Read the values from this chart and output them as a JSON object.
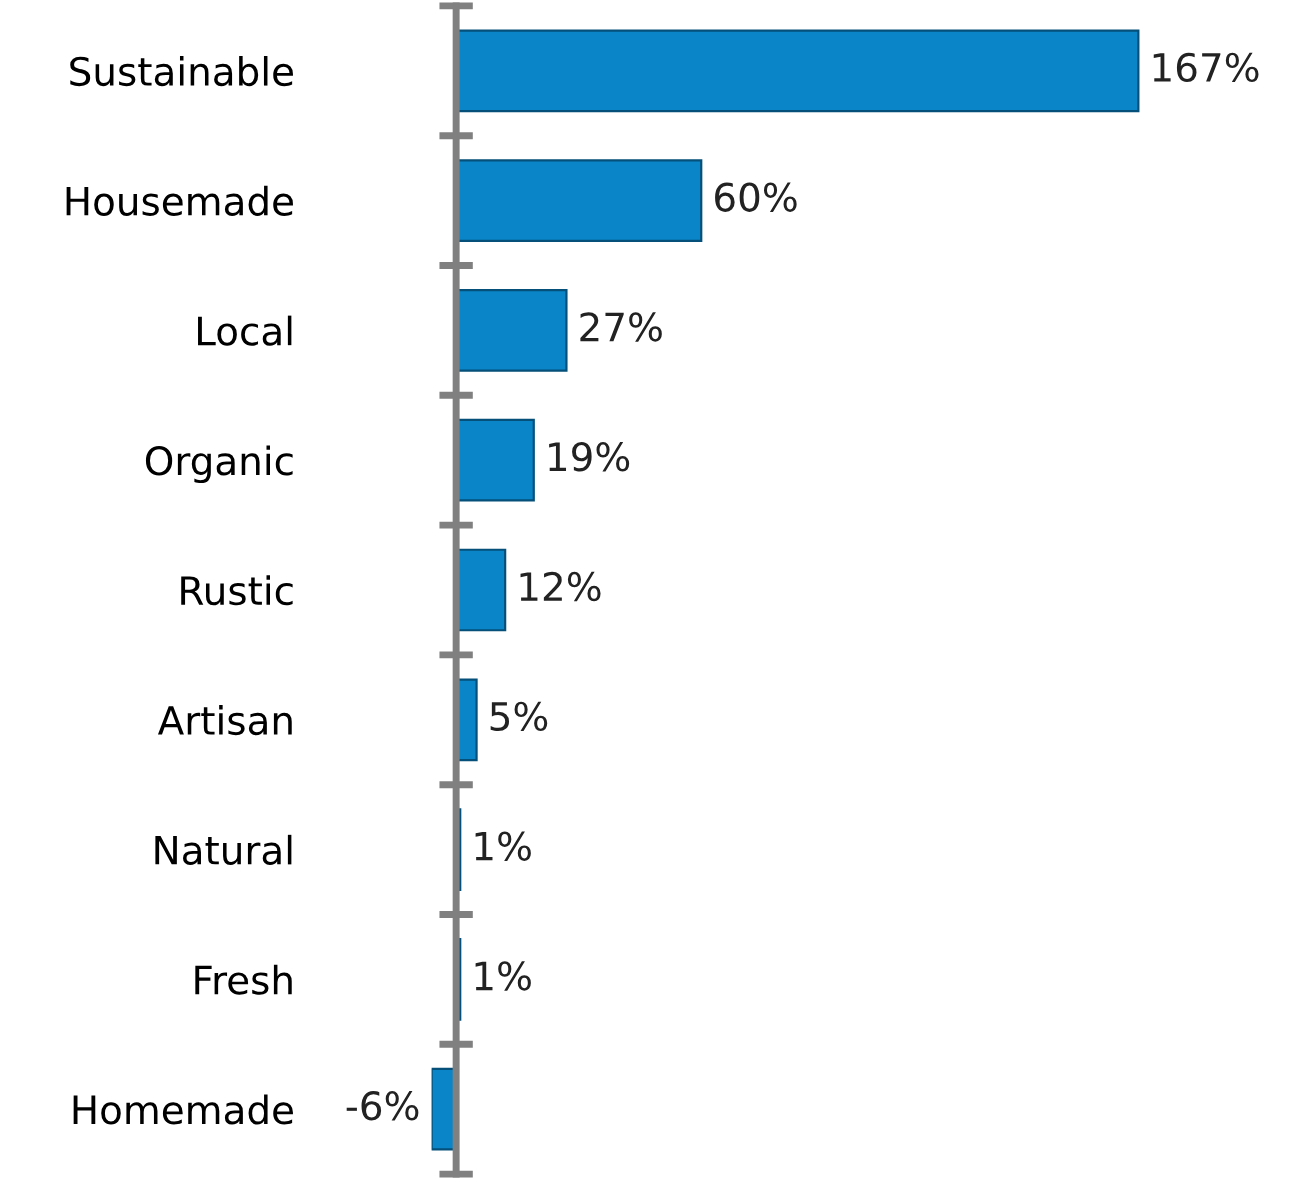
{
  "chart_data": {
    "type": "bar",
    "orientation": "horizontal",
    "categories": [
      "Sustainable",
      "Housemade",
      "Local",
      "Organic",
      "Rustic",
      "Artisan",
      "Natural",
      "Fresh",
      "Homemade"
    ],
    "values": [
      167,
      60,
      27,
      19,
      12,
      5,
      1,
      1,
      -6
    ],
    "value_labels": [
      "167%",
      "60%",
      "27%",
      "19%",
      "12%",
      "5%",
      "1%",
      "1%",
      "-6%"
    ],
    "color": "#0a86c8",
    "grid": false,
    "legend": false
  }
}
